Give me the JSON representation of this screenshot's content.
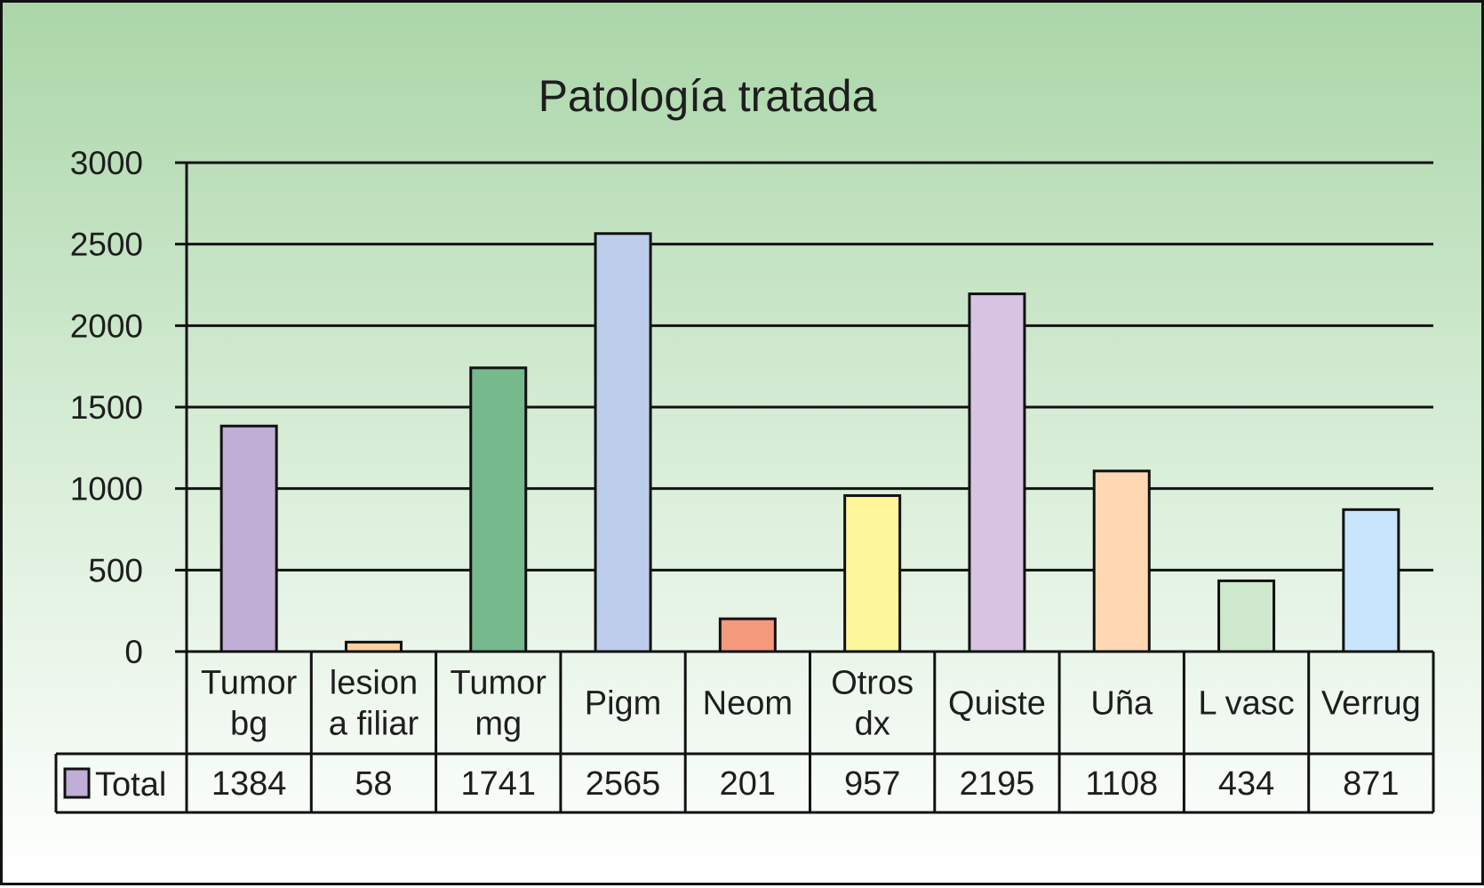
{
  "chart_data": {
    "type": "bar",
    "title": "Patología tratada",
    "categories": [
      [
        "Tumor",
        "bg"
      ],
      [
        "lesion",
        "a filiar"
      ],
      [
        "Tumor",
        "mg"
      ],
      [
        "Pigm"
      ],
      [
        "Neom"
      ],
      [
        "Otros",
        "dx"
      ],
      [
        "Quiste"
      ],
      [
        "Uña"
      ],
      [
        "L vasc"
      ],
      [
        "Verrug"
      ]
    ],
    "series": [
      {
        "name": "Total",
        "values": [
          1384,
          58,
          1741,
          2565,
          201,
          957,
          2195,
          1108,
          434,
          871
        ],
        "value_labels": [
          "1384",
          "58",
          "1741",
          "2565",
          "201",
          "957",
          "2195",
          "1108",
          "434",
          "871"
        ],
        "color": "#c0aed6"
      }
    ],
    "bar_colors": [
      "#c0aed6",
      "#fccf9c",
      "#75b98d",
      "#bccdec",
      "#f5997c",
      "#fdf69a",
      "#d9c3e3",
      "#fed8b3",
      "#cde8cc",
      "#c8e6fb"
    ],
    "y_ticks": [
      "0",
      "500",
      "1000",
      "1500",
      "2000",
      "2500",
      "3000"
    ],
    "ylim": [
      0,
      3000
    ],
    "grid": true,
    "legend": "data-table-left",
    "xlabel": "",
    "ylabel": ""
  }
}
